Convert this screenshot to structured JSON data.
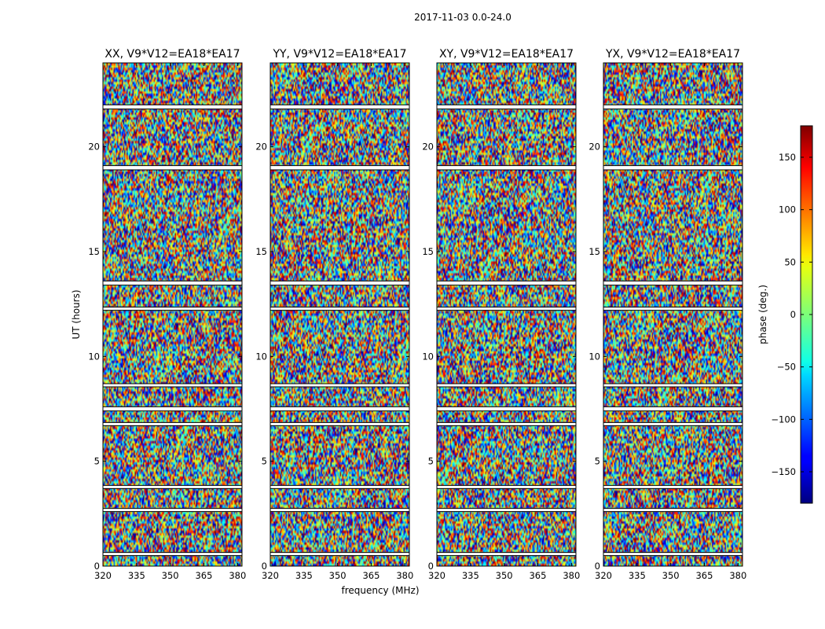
{
  "chart_data": {
    "type": "heatmap",
    "suptitle": "2017-11-03 0.0-24.0",
    "xlabel": "frequency (MHz)",
    "ylabel": "UT (hours)",
    "xlim": [
      320,
      382
    ],
    "ylim": [
      0,
      24
    ],
    "xticks": [
      320,
      335,
      350,
      365,
      380
    ],
    "yticks": [
      0,
      5,
      10,
      15,
      20
    ],
    "panels": [
      {
        "title": "XX, V9*V12=EA18*EA17"
      },
      {
        "title": "YY, V9*V12=EA18*EA17"
      },
      {
        "title": "XY, V9*V12=EA18*EA17"
      },
      {
        "title": "YX, V9*V12=EA18*EA17"
      }
    ],
    "colorbar": {
      "label": "phase (deg.)",
      "range": [
        -180,
        180
      ],
      "ticks": [
        -150,
        -100,
        -50,
        0,
        50,
        100,
        150
      ],
      "colormap": "jet"
    },
    "gap_bands_hours": [
      [
        0.5,
        0.65
      ],
      [
        2.6,
        2.75
      ],
      [
        3.7,
        3.85
      ],
      [
        6.7,
        6.85
      ],
      [
        7.4,
        7.6
      ],
      [
        8.55,
        8.7
      ],
      [
        12.2,
        12.35
      ],
      [
        13.4,
        13.6
      ],
      [
        18.9,
        19.1
      ],
      [
        21.8,
        22.0
      ]
    ]
  }
}
